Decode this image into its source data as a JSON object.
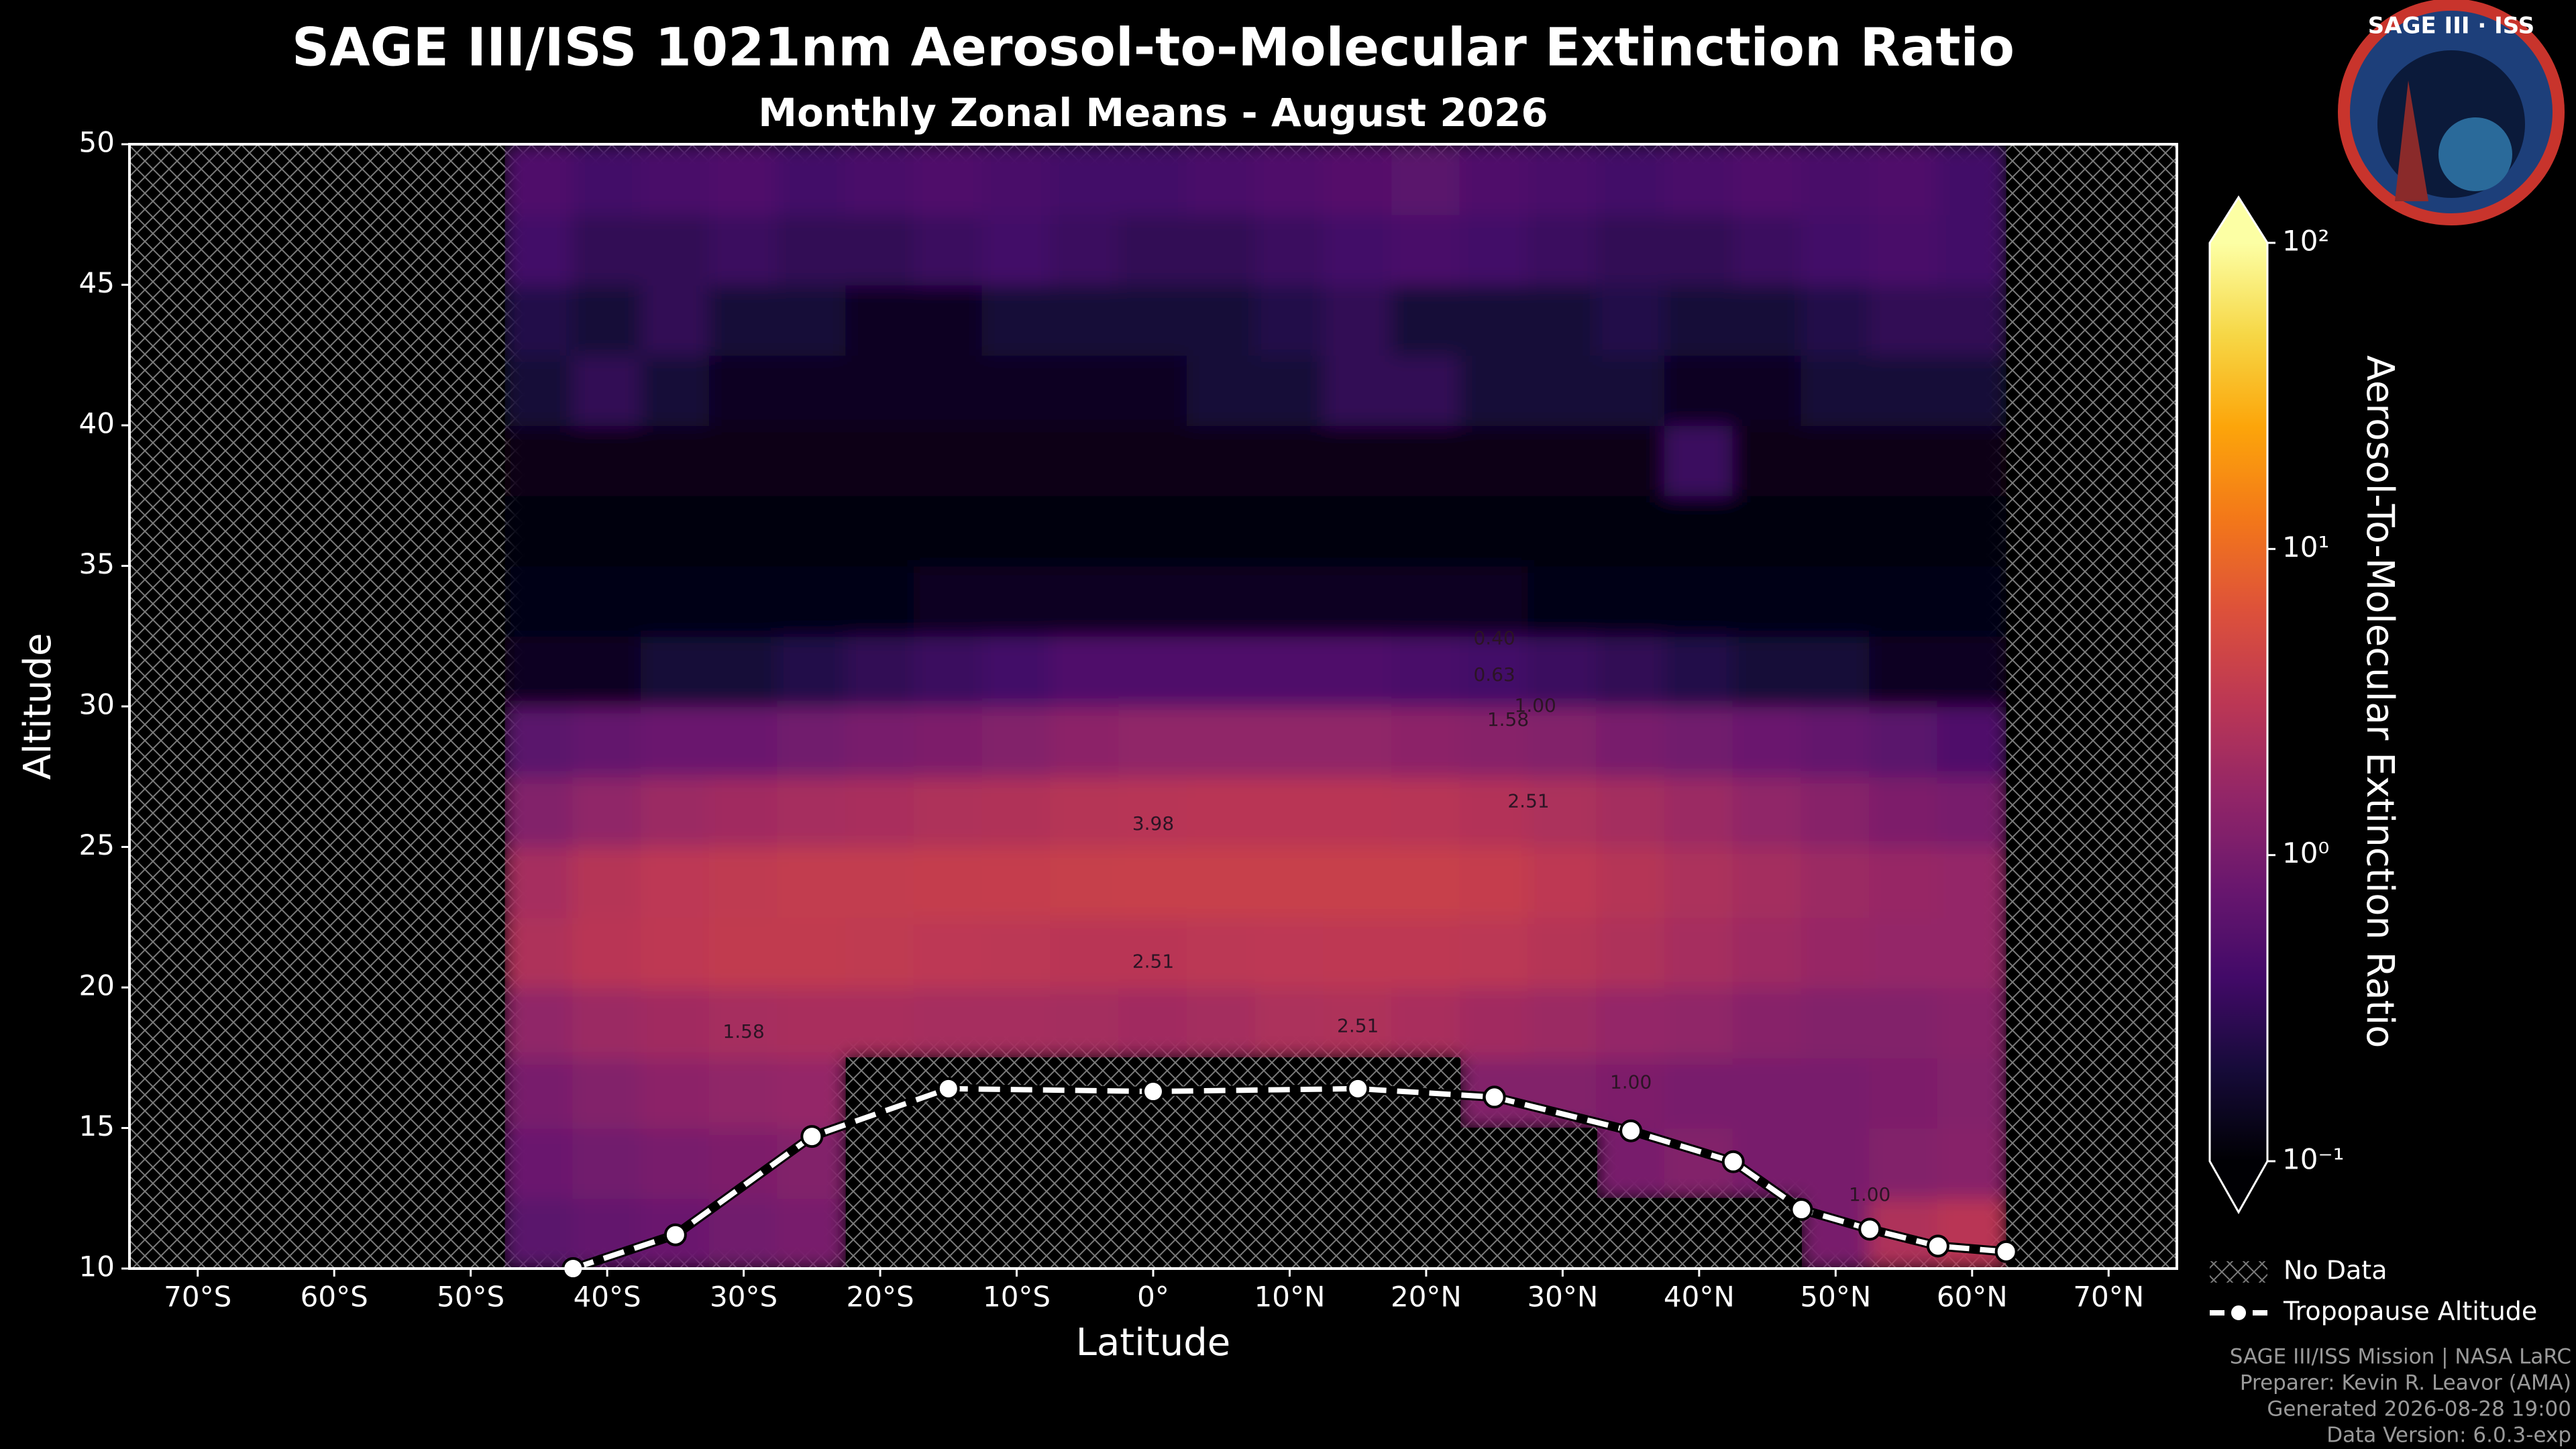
{
  "chart_data": {
    "type": "heatmap",
    "title": "SAGE III/ISS 1021nm Aerosol-to-Molecular Extinction Ratio",
    "subtitle": "Monthly Zonal Means - August 2026",
    "xlabel": "Latitude",
    "ylabel": "Altitude",
    "xlim": [
      -75,
      75
    ],
    "ylim": [
      10,
      50
    ],
    "xticks": [
      {
        "value": -70,
        "label": "70°S"
      },
      {
        "value": -60,
        "label": "60°S"
      },
      {
        "value": -50,
        "label": "50°S"
      },
      {
        "value": -40,
        "label": "40°S"
      },
      {
        "value": -30,
        "label": "30°S"
      },
      {
        "value": -20,
        "label": "20°S"
      },
      {
        "value": -10,
        "label": "10°S"
      },
      {
        "value": 0,
        "label": "0°"
      },
      {
        "value": 10,
        "label": "10°N"
      },
      {
        "value": 20,
        "label": "20°N"
      },
      {
        "value": 30,
        "label": "30°N"
      },
      {
        "value": 40,
        "label": "40°N"
      },
      {
        "value": 50,
        "label": "50°N"
      },
      {
        "value": 60,
        "label": "60°N"
      },
      {
        "value": 70,
        "label": "70°N"
      }
    ],
    "yticks": [
      10,
      15,
      20,
      25,
      30,
      35,
      40,
      45,
      50
    ],
    "x": [
      -45,
      -40,
      -35,
      -30,
      -25,
      -20,
      -15,
      -10,
      -5,
      0,
      5,
      10,
      15,
      20,
      25,
      30,
      35,
      40,
      45,
      50,
      55,
      60
    ],
    "y": [
      11.25,
      13.75,
      16.25,
      18.75,
      21.25,
      23.75,
      26.25,
      28.75,
      31.25,
      33.75,
      36.25,
      38.75,
      41.25,
      43.75,
      46.25,
      48.75
    ],
    "z": [
      [
        0.6,
        0.7,
        0.8,
        0.9,
        1.0,
        null,
        null,
        null,
        null,
        null,
        null,
        null,
        null,
        null,
        null,
        null,
        null,
        null,
        null,
        1.0,
        2.5,
        3.0
      ],
      [
        0.8,
        0.9,
        1.0,
        1.1,
        1.2,
        null,
        null,
        null,
        null,
        null,
        null,
        null,
        null,
        null,
        null,
        null,
        1.0,
        1.2,
        1.0,
        1.0,
        1.2,
        1.3
      ],
      [
        1.0,
        1.2,
        1.4,
        1.5,
        1.6,
        null,
        null,
        null,
        null,
        null,
        null,
        null,
        null,
        null,
        1.2,
        1.2,
        1.1,
        1.0,
        1.0,
        1.0,
        1.1,
        1.2
      ],
      [
        1.5,
        1.8,
        2.0,
        2.2,
        2.3,
        2.3,
        2.2,
        2.2,
        2.1,
        2.0,
        2.1,
        2.4,
        2.5,
        2.3,
        2.0,
        1.8,
        1.6,
        1.5,
        1.3,
        1.2,
        1.2,
        1.3
      ],
      [
        2.5,
        3.0,
        3.3,
        3.5,
        3.5,
        3.4,
        3.2,
        3.1,
        3.0,
        3.0,
        3.1,
        3.2,
        3.3,
        3.3,
        3.1,
        2.8,
        2.5,
        2.2,
        1.9,
        1.7,
        1.6,
        1.6
      ],
      [
        2.2,
        2.8,
        3.2,
        3.4,
        3.6,
        3.6,
        3.7,
        3.8,
        3.9,
        4.0,
        4.0,
        4.0,
        4.0,
        4.0,
        3.8,
        3.3,
        2.8,
        2.4,
        2.1,
        1.8,
        1.7,
        1.6
      ],
      [
        1.2,
        1.5,
        1.8,
        2.0,
        2.2,
        2.3,
        2.5,
        2.6,
        2.8,
        2.9,
        3.0,
        3.0,
        3.0,
        2.9,
        2.7,
        2.4,
        2.1,
        1.8,
        1.5,
        1.3,
        1.1,
        1.0
      ],
      [
        0.6,
        0.7,
        0.8,
        0.8,
        0.9,
        1.0,
        1.1,
        1.2,
        1.4,
        1.5,
        1.5,
        1.5,
        1.5,
        1.4,
        1.3,
        1.2,
        1.0,
        0.9,
        0.8,
        0.7,
        0.6,
        0.5
      ],
      [
        0.15,
        0.15,
        0.2,
        0.2,
        0.25,
        0.3,
        0.35,
        0.4,
        0.5,
        0.5,
        0.5,
        0.5,
        0.5,
        0.45,
        0.4,
        0.35,
        0.3,
        0.25,
        0.2,
        0.2,
        0.15,
        0.15
      ],
      [
        0.12,
        0.12,
        0.12,
        0.12,
        0.12,
        0.12,
        0.15,
        0.15,
        0.15,
        0.15,
        0.15,
        0.15,
        0.15,
        0.15,
        0.15,
        0.12,
        0.12,
        0.12,
        0.12,
        0.12,
        0.12,
        0.12
      ],
      [
        0.11,
        0.11,
        0.11,
        0.11,
        0.11,
        0.11,
        0.11,
        0.11,
        0.11,
        0.11,
        0.11,
        0.11,
        0.11,
        0.11,
        0.11,
        0.11,
        0.11,
        0.11,
        0.11,
        0.11,
        0.11,
        0.11
      ],
      [
        0.13,
        0.13,
        0.13,
        0.13,
        0.13,
        0.13,
        0.13,
        0.13,
        0.13,
        0.13,
        0.13,
        0.13,
        0.13,
        0.13,
        0.13,
        0.13,
        0.13,
        0.35,
        0.13,
        0.13,
        0.13,
        0.13
      ],
      [
        0.2,
        0.3,
        0.2,
        0.15,
        0.15,
        0.15,
        0.15,
        0.15,
        0.15,
        0.15,
        0.2,
        0.2,
        0.3,
        0.3,
        0.2,
        0.2,
        0.2,
        0.15,
        0.15,
        0.2,
        0.2,
        0.2
      ],
      [
        0.25,
        0.2,
        0.3,
        0.2,
        0.2,
        0.15,
        0.15,
        0.2,
        0.2,
        0.2,
        0.2,
        0.25,
        0.3,
        0.2,
        0.2,
        0.2,
        0.25,
        0.2,
        0.2,
        0.25,
        0.3,
        0.3
      ],
      [
        0.4,
        0.3,
        0.3,
        0.35,
        0.3,
        0.3,
        0.35,
        0.4,
        0.35,
        0.3,
        0.3,
        0.35,
        0.4,
        0.45,
        0.4,
        0.35,
        0.3,
        0.3,
        0.35,
        0.4,
        0.45,
        0.4
      ],
      [
        0.5,
        0.4,
        0.45,
        0.5,
        0.4,
        0.45,
        0.5,
        0.45,
        0.4,
        0.4,
        0.45,
        0.5,
        0.55,
        0.6,
        0.5,
        0.45,
        0.4,
        0.45,
        0.5,
        0.45,
        0.5,
        0.4
      ]
    ],
    "colormap": "inferno",
    "colorbar": {
      "label": "Aerosol-To-Molecular Extinction Ratio",
      "log": true,
      "lim": [
        0.1,
        100
      ],
      "ticks": [
        {
          "value": 0.1,
          "label": "10⁻¹"
        },
        {
          "value": 1,
          "label": "10⁰"
        },
        {
          "value": 10,
          "label": "10¹"
        },
        {
          "value": 100,
          "label": "10²"
        }
      ]
    },
    "annotations": [
      {
        "text": "3.98",
        "x": 0,
        "y": 25.8
      },
      {
        "text": "2.51",
        "x": 0,
        "y": 20.9
      },
      {
        "text": "1.58",
        "x": -30,
        "y": 18.4
      },
      {
        "text": "2.51",
        "x": 15,
        "y": 18.6
      },
      {
        "text": "2.51",
        "x": 27.5,
        "y": 26.6
      },
      {
        "text": "1.58",
        "x": 26,
        "y": 29.5
      },
      {
        "text": "1.00",
        "x": 28,
        "y": 30.0
      },
      {
        "text": "0.63",
        "x": 25,
        "y": 31.1
      },
      {
        "text": "0.40",
        "x": 25,
        "y": 32.4
      },
      {
        "text": "1.00",
        "x": 35,
        "y": 16.6
      },
      {
        "text": "1.00",
        "x": 52.5,
        "y": 12.6
      }
    ],
    "lines": [
      {
        "name": "Tropopause Altitude",
        "color": "#ffffff",
        "x": [
          -42.5,
          -35,
          -25,
          -15,
          0,
          15,
          25,
          35,
          42.5,
          47.5,
          52.5,
          57.5,
          62.5
        ],
        "values": [
          10.0,
          11.2,
          14.7,
          16.4,
          16.3,
          16.4,
          16.1,
          14.9,
          13.8,
          12.1,
          11.4,
          10.8,
          10.6
        ]
      }
    ],
    "no_data_label": "No Data",
    "logo_text": "SAGE III · ISS",
    "credits": [
      "SAGE III/ISS Mission | NASA LaRC",
      "Preparer: Kevin R. Leavor (AMA)",
      "Generated 2026-08-28 19:00",
      "Data Version: 6.0.3-exp"
    ]
  }
}
